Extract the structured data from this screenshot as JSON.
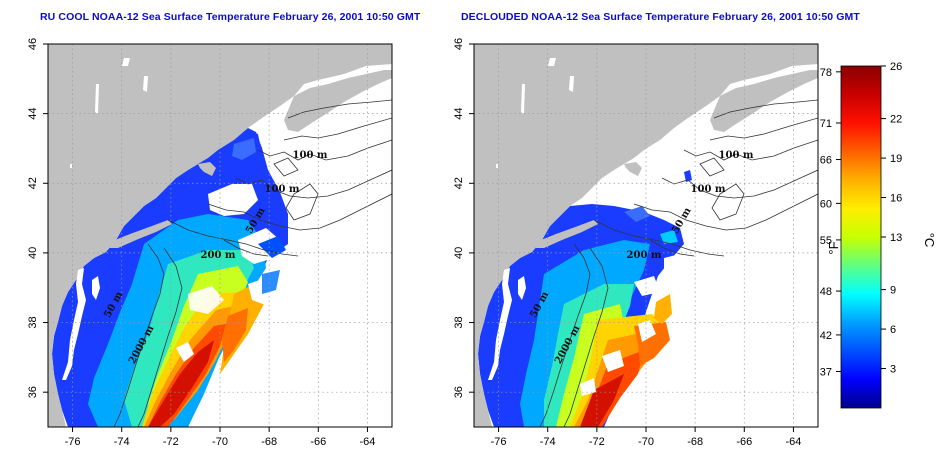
{
  "maps": [
    {
      "title": "RU COOL NOAA-12 Sea Surface Temperature February 26, 2001 10:50 GMT",
      "cloud_masked": false
    },
    {
      "title": "DECLOUDED NOAA-12 Sea Surface Temperature February 26, 2001 10:50 GMT",
      "cloud_masked": true
    }
  ],
  "axes": {
    "lon_ticks": [
      "-76",
      "-74",
      "-72",
      "-70",
      "-68",
      "-66",
      "-64"
    ],
    "lat_ticks": [
      "46",
      "44",
      "42",
      "40",
      "38",
      "36"
    ],
    "lon_range": [
      -77,
      -63
    ],
    "lat_range": [
      35,
      46
    ],
    "grid": "dotted"
  },
  "contour_labels": [
    "100 m",
    "100 m",
    "50 m",
    "200 m",
    "50 m",
    "2000 m"
  ],
  "colorbar": {
    "unit_f": "°F",
    "unit_c": "°C",
    "f_ticks": [
      "78",
      "71",
      "66",
      "60",
      "55",
      "48",
      "42",
      "37"
    ],
    "c_ticks": [
      "26",
      "22",
      "19",
      "16",
      "13",
      "9",
      "6",
      "3"
    ],
    "colors": [
      "#00008b",
      "#0000ff",
      "#0050ff",
      "#00a0ff",
      "#00ffff",
      "#60ff80",
      "#c8ff00",
      "#ffee00",
      "#ffb000",
      "#ff6000",
      "#ff1000",
      "#c80000",
      "#8b0000"
    ]
  },
  "colors": {
    "land": "#c0c0c0",
    "title": "#0a0ad0"
  }
}
